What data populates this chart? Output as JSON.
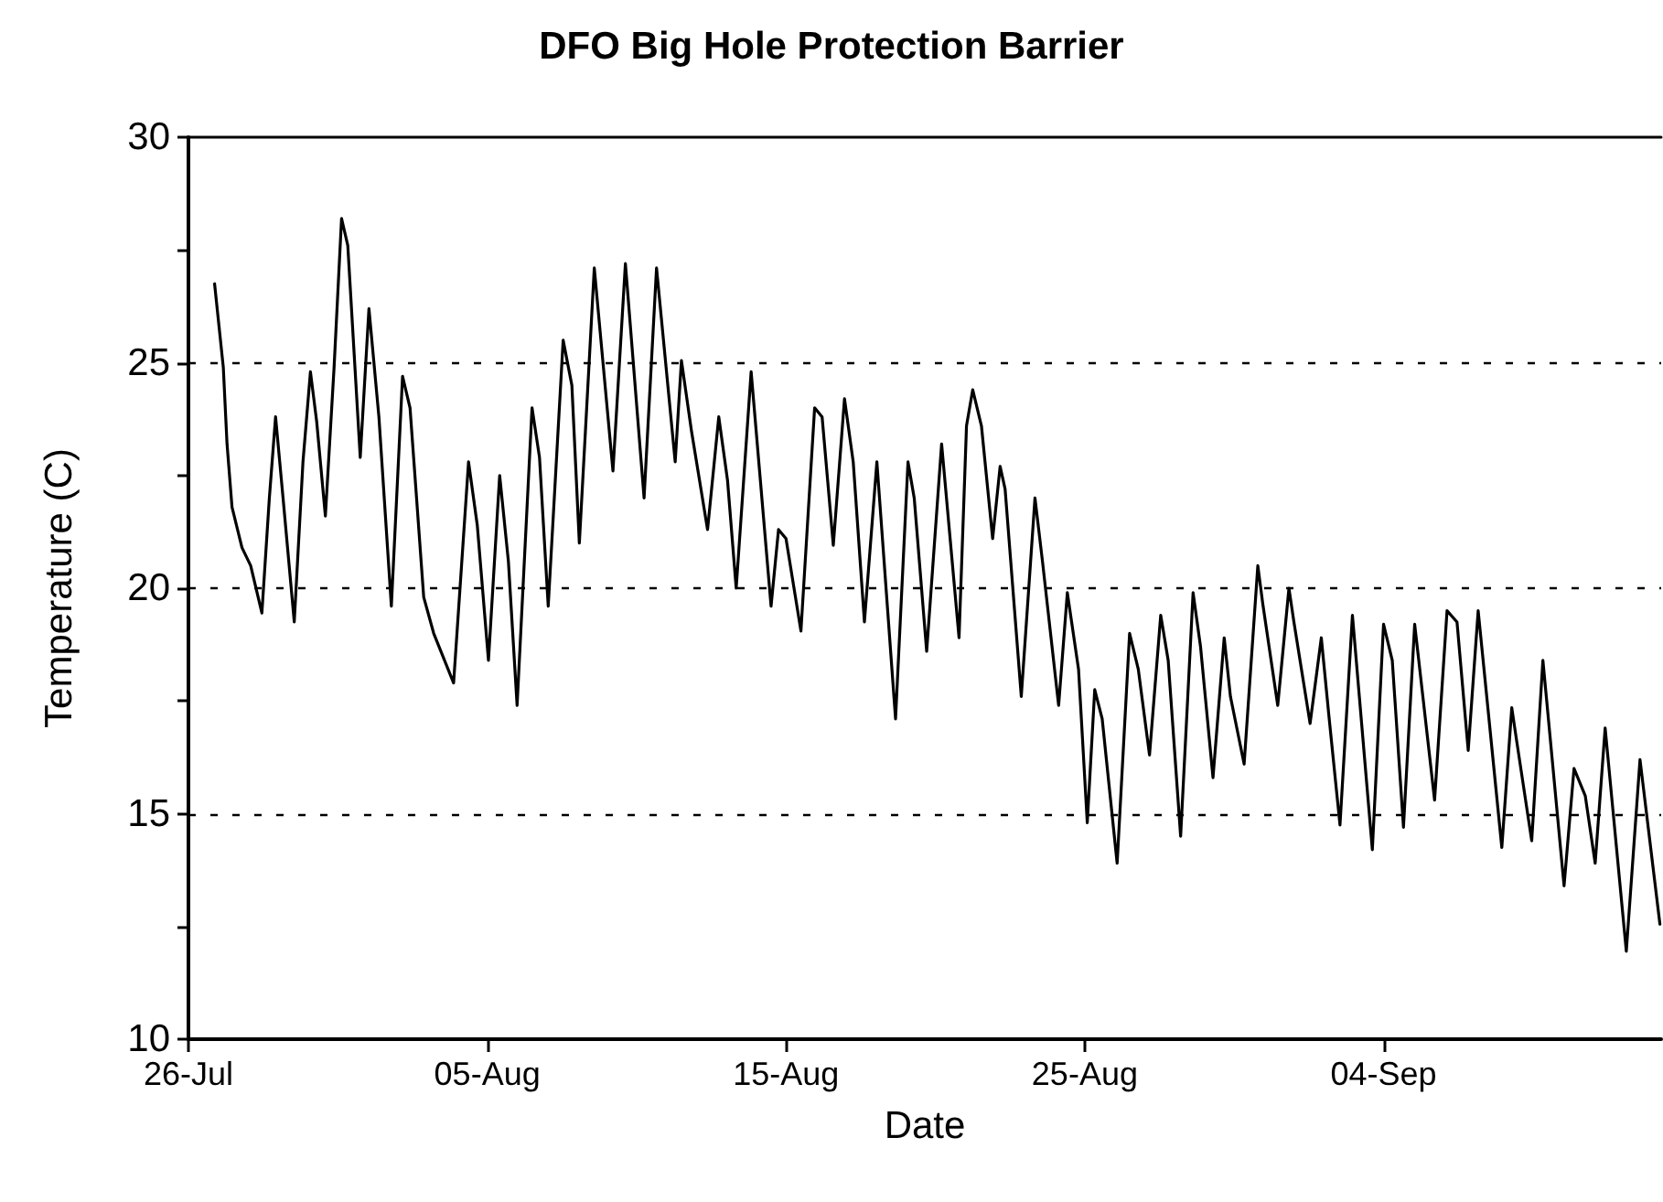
{
  "chart_data": {
    "type": "line",
    "title": "DFO Big Hole Protection Barrier",
    "xlabel": "Date",
    "ylabel": "Temperature (C)",
    "xlim": [
      "--07-26",
      "--09-13T07:00"
    ],
    "xticks": [
      {
        "value": "--07-26",
        "label": "26-Jul"
      },
      {
        "value": "--08-05",
        "label": "05-Aug"
      },
      {
        "value": "--08-15",
        "label": "15-Aug"
      },
      {
        "value": "--08-25",
        "label": "25-Aug"
      },
      {
        "value": "--09-04",
        "label": "04-Sep"
      }
    ],
    "ylim": [
      10,
      30
    ],
    "yticks": [
      10,
      {
        "value": 12.5,
        "label": null
      },
      15,
      {
        "value": 17.5,
        "label": null
      },
      20,
      {
        "value": 22.5,
        "label": null
      },
      25,
      {
        "value": 27.5,
        "label": null
      },
      30
    ],
    "grid": "y",
    "marker": "none",
    "line_style": "solid",
    "series": [
      {
        "color": "#000000",
        "x": [
          "--07-26T21:00",
          "--07-27T04:00",
          "--07-27T07:00",
          "--07-27T11:00",
          "--07-27T19:00",
          "--07-28T02:00",
          "--07-28T11:00",
          "--07-28T17:00",
          "--07-28T22:00",
          "--07-29T04:00",
          "--07-29T13:00",
          "--07-29T20:00",
          "--07-30T02:00",
          "--07-30T07:00",
          "--07-30T14:00",
          "--07-30T21:00",
          "--07-31T03:00",
          "--07-31T08:00",
          "--07-31T18:00",
          "--08-01T01:00",
          "--08-01T09:00",
          "--08-01T19:00",
          "--08-02T04:00",
          "--08-02T10:00",
          "--08-02T21:00",
          "--08-03T05:00",
          "--08-03T21:00",
          "--08-04T09:00",
          "--08-04T16:00",
          "--08-05T01:00",
          "--08-05T10:00",
          "--08-05T17:00",
          "--08-06T00:00",
          "--08-06T12:00",
          "--08-06T18:00",
          "--08-07T01:00",
          "--08-07T13:00",
          "--08-07T20:00",
          "--08-08T02:00",
          "--08-08T14:00",
          "--08-09T05:00",
          "--08-09T15:00",
          "--08-10T06:00",
          "--08-10T16:00",
          "--08-11T07:00",
          "--08-11T12:00",
          "--08-11T20:00",
          "--08-12T09:00",
          "--08-12T18:00",
          "--08-13T01:00",
          "--08-13T08:00",
          "--08-13T20:00",
          "--08-14T12:00",
          "--08-14T18:00",
          "--08-15T00:00",
          "--08-15T12:00",
          "--08-15T23:00",
          "--08-16T05:00",
          "--08-16T14:00",
          "--08-16T23:00",
          "--08-17T06:00",
          "--08-17T15:00",
          "--08-18T01:00",
          "--08-18T16:00",
          "--08-19T02:00",
          "--08-19T07:00",
          "--08-19T17:00",
          "--08-20T05:00",
          "--08-20T19:00",
          "--08-21T01:00",
          "--08-21T06:00",
          "--08-21T13:00",
          "--08-21T22:00",
          "--08-22T04:00",
          "--08-22T08:00",
          "--08-22T21:00",
          "--08-23T08:00",
          "--08-23T14:00",
          "--08-24T03:00",
          "--08-24T10:00",
          "--08-24T19:00",
          "--08-25T02:00",
          "--08-25T08:00",
          "--08-25T14:00",
          "--08-26T02:00",
          "--08-26T12:00",
          "--08-26T19:00",
          "--08-27T04:00",
          "--08-27T13:00",
          "--08-27T19:00",
          "--08-28T05:00",
          "--08-28T15:00",
          "--08-28T21:00",
          "--08-29T07:00",
          "--08-29T16:00",
          "--08-29T21:00",
          "--08-30T08:00",
          "--08-30T19:00",
          "--08-30T23:00",
          "--08-31T11:00",
          "--08-31T20:00",
          "--09-01T00:00",
          "--09-01T13:00",
          "--09-01T22:00",
          "--09-02T04:00",
          "--09-02T13:00",
          "--09-02T23:00",
          "--09-03T15:00",
          "--09-04T00:00",
          "--09-04T07:00",
          "--09-04T16:00",
          "--09-05T01:00",
          "--09-05T17:00",
          "--09-06T03:00",
          "--09-06T11:00",
          "--09-06T20:00",
          "--09-07T04:00",
          "--09-07T23:00",
          "--09-08T07:00",
          "--09-08T11:00",
          "--09-08T23:00",
          "--09-09T08:00",
          "--09-10T01:00",
          "--09-10T09:00",
          "--09-10T18:00",
          "--09-11T02:00",
          "--09-11T10:00",
          "--09-12T03:00",
          "--09-12T14:00",
          "--09-13T06:00"
        ],
        "values": [
          26.75,
          24.9,
          23.2,
          21.8,
          20.9,
          20.5,
          19.45,
          22.0,
          23.8,
          22.0,
          19.25,
          22.8,
          24.8,
          23.7,
          21.6,
          24.9,
          28.2,
          27.6,
          22.9,
          26.2,
          23.8,
          19.6,
          24.7,
          24.0,
          19.8,
          19.0,
          17.9,
          22.8,
          21.4,
          18.4,
          22.5,
          20.6,
          17.4,
          24.0,
          22.9,
          19.6,
          25.5,
          24.5,
          21.0,
          27.1,
          22.6,
          27.2,
          22.0,
          27.1,
          22.8,
          25.05,
          23.5,
          21.3,
          23.8,
          22.4,
          20.0,
          24.8,
          19.6,
          21.3,
          21.1,
          19.05,
          24.0,
          23.8,
          20.95,
          24.2,
          22.8,
          19.25,
          22.8,
          17.1,
          22.8,
          22.0,
          18.6,
          23.2,
          18.9,
          23.6,
          24.4,
          23.6,
          21.1,
          22.7,
          22.2,
          17.6,
          22.0,
          20.6,
          17.4,
          19.9,
          18.2,
          14.8,
          17.75,
          17.1,
          13.9,
          19.0,
          18.2,
          16.3,
          19.4,
          18.4,
          14.5,
          19.9,
          18.7,
          15.8,
          18.9,
          17.6,
          16.1,
          20.5,
          19.65,
          17.4,
          20.0,
          19.25,
          17.0,
          18.9,
          17.2,
          14.75,
          19.4,
          14.2,
          19.2,
          18.4,
          14.7,
          19.2,
          15.3,
          19.5,
          19.25,
          16.4,
          19.5,
          14.25,
          17.35,
          16.6,
          14.4,
          18.4,
          13.4,
          16.0,
          15.4,
          13.9,
          16.9,
          11.95,
          16.2,
          12.55
        ]
      }
    ]
  }
}
